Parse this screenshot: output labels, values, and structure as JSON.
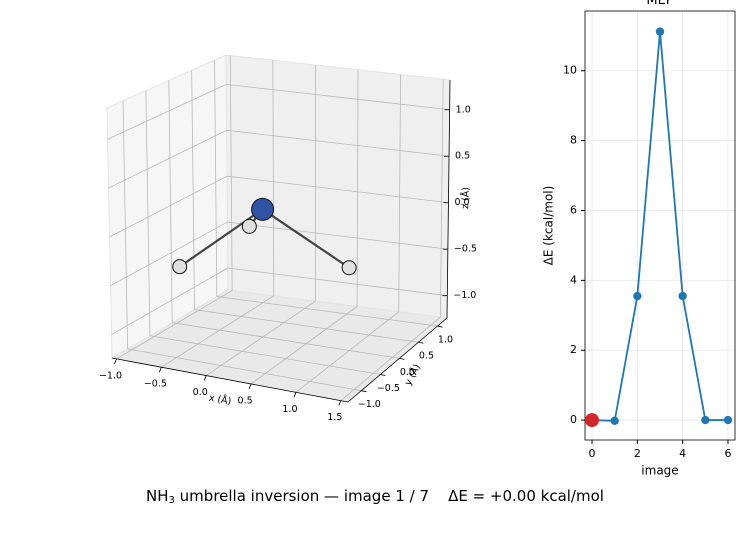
{
  "caption": {
    "prefix": "NH",
    "subscript": "3",
    "text": " umbrella inversion — image 1 / 7    ΔE = +0.00 kcal/mol"
  },
  "chart_data": [
    {
      "type": "molecule3d",
      "x_label": "x (Å)",
      "y_label": "y (Å)",
      "z_label": "z (Å)",
      "xlim": [
        -1.05,
        1.58
      ],
      "ylim": [
        -1.35,
        1.25
      ],
      "zlim": [
        -1.24,
        1.32
      ],
      "xticks": [
        {
          "value": -1,
          "label": "−1.0"
        },
        {
          "value": -0.5,
          "label": "−0.5"
        },
        {
          "value": 0,
          "label": "0.0"
        },
        {
          "value": 0.5,
          "label": "0.5"
        },
        {
          "value": 1,
          "label": "1.0"
        },
        {
          "value": 1.5,
          "label": "1.5"
        }
      ],
      "yticks": [
        {
          "value": -1,
          "label": "−1.0"
        },
        {
          "value": -0.5,
          "label": "−0.5"
        },
        {
          "value": 0,
          "label": "0.0"
        },
        {
          "value": 0.5,
          "label": "0.5"
        },
        {
          "value": 1,
          "label": "1.0"
        }
      ],
      "zticks": [
        {
          "value": -1,
          "label": "−1.0"
        },
        {
          "value": -0.5,
          "label": "−0.5"
        },
        {
          "value": 0,
          "label": "0.0"
        },
        {
          "value": 0.5,
          "label": "0.5"
        },
        {
          "value": 1,
          "label": "1.0"
        }
      ],
      "grid": true,
      "atoms": {
        "x": [
          0,
          -0.75,
          0.9,
          -0.3
        ],
        "y": [
          0,
          -0.4,
          0.2,
          0.3
        ],
        "z": [
          0.1,
          -0.5,
          -0.45,
          -0.2
        ],
        "sizes": [
          11,
          7,
          7,
          7
        ],
        "colors": [
          "#3153a5",
          "#e0e0e0",
          "#e0e0e0",
          "#e0e0e0"
        ]
      },
      "bonds": [
        [
          0,
          1
        ],
        [
          0,
          2
        ],
        [
          0,
          3
        ]
      ]
    },
    {
      "type": "line",
      "title": "MEP",
      "x_label": "image",
      "y_label": "ΔE (kcal/mol)",
      "x": [
        0,
        1,
        2,
        3,
        4,
        5,
        6
      ],
      "series": [
        {
          "color": "#1f77b4",
          "values": [
            0,
            -0.02,
            3.55,
            11.12,
            3.55,
            0,
            0
          ]
        }
      ],
      "marker": {
        "x": 0,
        "y": 0,
        "color": "#d62728"
      },
      "xlim": [
        -0.31,
        6.31
      ],
      "ylim": [
        -0.57,
        11.71
      ],
      "xticks": [
        0,
        2,
        4,
        6
      ],
      "yticks": [
        0,
        2,
        4,
        6,
        8,
        10
      ],
      "grid": true
    }
  ]
}
